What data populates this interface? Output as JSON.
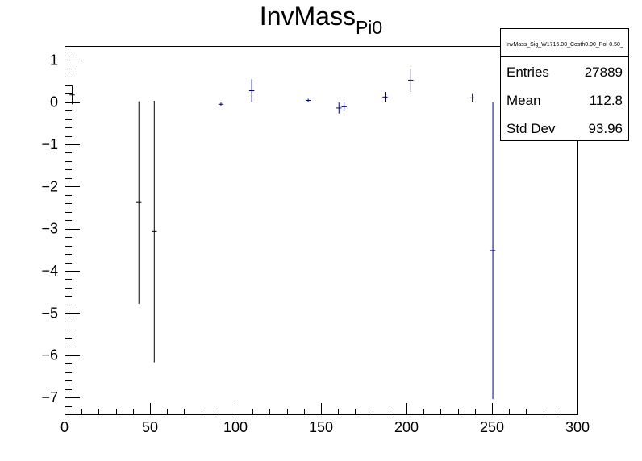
{
  "chart_data": {
    "type": "scatter",
    "title": "InvMass",
    "title_subscript": "Pi0",
    "xlabel": "",
    "ylabel": "",
    "xlim": [
      0,
      300
    ],
    "ylim": [
      -7.4,
      1.33
    ],
    "x_major_ticks": [
      0,
      50,
      100,
      150,
      200,
      250,
      300
    ],
    "x_tick_labels": [
      "0",
      "50",
      "100",
      "150",
      "200",
      "250",
      "300"
    ],
    "y_major_ticks": [
      -7,
      -6,
      -5,
      -4,
      -3,
      -2,
      -1,
      0,
      1
    ],
    "y_tick_labels": [
      "−7",
      "−6",
      "−5",
      "−4",
      "−3",
      "−2",
      "−1",
      "0",
      "1"
    ],
    "grid": false,
    "marker_color": "#000080",
    "bin_half_width": 1.5,
    "points": [
      {
        "x": 4.5,
        "y": 0.17,
        "err": 0.22,
        "color": "#000000"
      },
      {
        "x": 43.5,
        "y": -2.38,
        "err": 2.4,
        "color": "#000000"
      },
      {
        "x": 52.5,
        "y": -3.07,
        "err": 3.1,
        "color": "#000000"
      },
      {
        "x": 91.5,
        "y": -0.05,
        "err": 0.04,
        "color": "#000080"
      },
      {
        "x": 109.5,
        "y": 0.27,
        "err": 0.27,
        "color": "#000080"
      },
      {
        "x": 142.5,
        "y": 0.04,
        "err": 0.04,
        "color": "#000080"
      },
      {
        "x": 160.5,
        "y": -0.14,
        "err": 0.13,
        "color": "#000080"
      },
      {
        "x": 163.5,
        "y": -0.11,
        "err": 0.11,
        "color": "#000080"
      },
      {
        "x": 187.5,
        "y": 0.12,
        "err": 0.12,
        "color": "#000080"
      },
      {
        "x": 202.5,
        "y": 0.52,
        "err": 0.28,
        "color": "#000080"
      },
      {
        "x": 238.5,
        "y": 0.1,
        "err": 0.09,
        "color": "#000080"
      },
      {
        "x": 250.5,
        "y": -3.52,
        "err": 3.52,
        "color": "#000080"
      }
    ],
    "stats_box": {
      "name": "InvMass_Sig_W1715.00_Costh0.90_Pol-0.50_",
      "rows": [
        {
          "label": "Entries",
          "value": "27889"
        },
        {
          "label": "Mean",
          "value": "112.8"
        },
        {
          "label": "Std Dev",
          "value": "93.96"
        }
      ]
    }
  }
}
